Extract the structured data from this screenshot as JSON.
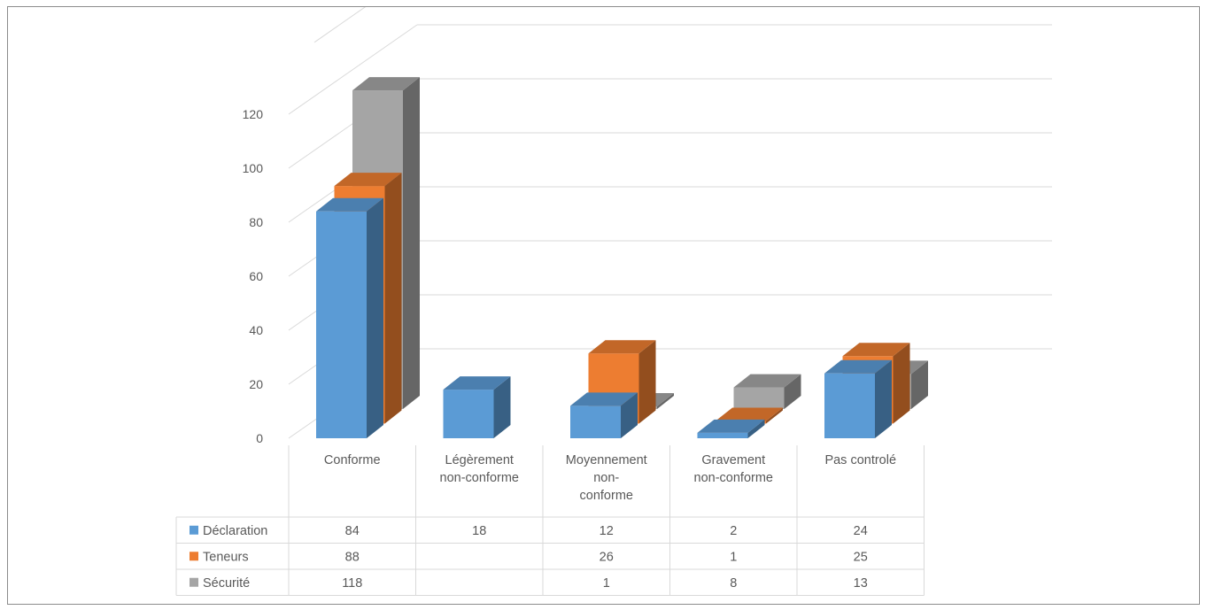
{
  "chart_data": {
    "type": "bar",
    "title": "",
    "xlabel": "",
    "ylabel": "",
    "ylim": [
      0,
      120
    ],
    "yticks": [
      0,
      20,
      40,
      60,
      80,
      100,
      120
    ],
    "grid": true,
    "legend": "data-table",
    "categories": [
      [
        "Conforme"
      ],
      [
        "Légèrement",
        "non-conforme"
      ],
      [
        "Moyennement",
        "non-",
        "conforme"
      ],
      [
        "Gravement",
        "non-conforme"
      ],
      [
        "Pas controlé"
      ]
    ],
    "series": [
      {
        "name": "Déclaration",
        "color": "#5b9bd5",
        "values": [
          84,
          18,
          12,
          2,
          24
        ]
      },
      {
        "name": "Teneurs",
        "color": "#ed7d31",
        "values": [
          88,
          null,
          26,
          1,
          25
        ]
      },
      {
        "name": "Sécurité",
        "color": "#a5a5a5",
        "values": [
          118,
          null,
          1,
          8,
          13
        ]
      }
    ]
  }
}
